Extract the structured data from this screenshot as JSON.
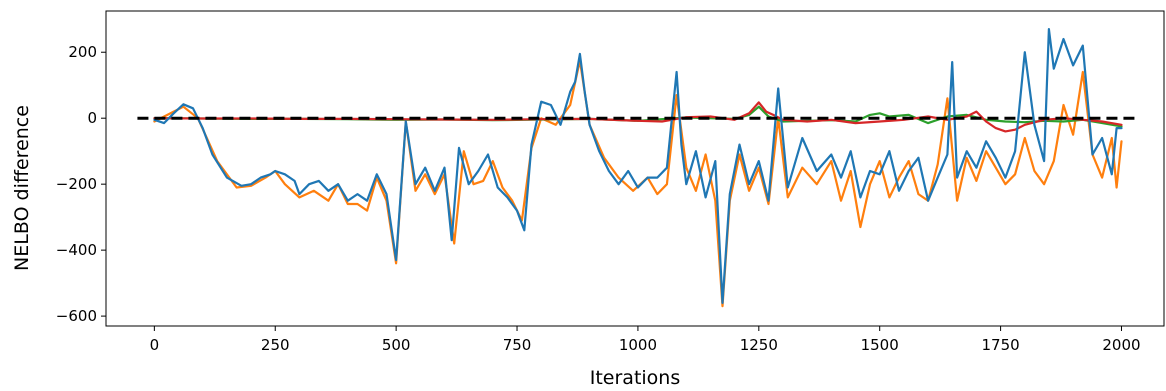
{
  "chart_data": {
    "type": "line",
    "title": "",
    "xlabel": "Iterations",
    "ylabel": "NELBO difference",
    "xlim": [
      -100,
      2090
    ],
    "ylim": [
      -630,
      325
    ],
    "xticks": [
      0,
      250,
      500,
      750,
      1000,
      1250,
      1500,
      1750,
      2000
    ],
    "yticks": [
      200,
      0,
      -200,
      -400,
      -600
    ],
    "xtick_labels": [
      "0",
      "250",
      "500",
      "750",
      "1000",
      "1250",
      "1500",
      "1750",
      "2000"
    ],
    "ytick_labels": [
      "200",
      "0",
      "−200",
      "−400",
      "−600"
    ],
    "grid": false,
    "reference_line": {
      "y": 0,
      "color": "#000000",
      "style": "dashed"
    },
    "series": [
      {
        "color": "#ff7f0e",
        "x": [
          0,
          40,
          60,
          90,
          130,
          170,
          200,
          230,
          250,
          270,
          300,
          330,
          360,
          380,
          400,
          420,
          440,
          460,
          480,
          500,
          520,
          540,
          560,
          580,
          600,
          620,
          640,
          660,
          680,
          700,
          720,
          740,
          760,
          780,
          800,
          830,
          860,
          880,
          900,
          930,
          960,
          990,
          1020,
          1040,
          1060,
          1080,
          1100,
          1120,
          1140,
          1160,
          1175,
          1190,
          1210,
          1230,
          1250,
          1270,
          1290,
          1310,
          1340,
          1370,
          1400,
          1420,
          1440,
          1460,
          1480,
          1500,
          1520,
          1540,
          1560,
          1580,
          1600,
          1620,
          1640,
          1660,
          1680,
          1700,
          1720,
          1740,
          1760,
          1780,
          1800,
          1820,
          1840,
          1860,
          1880,
          1900,
          1920,
          1940,
          1960,
          1980,
          1990,
          2000
        ],
        "y": [
          -10,
          20,
          35,
          0,
          -130,
          -210,
          -205,
          -180,
          -160,
          -200,
          -240,
          -220,
          -250,
          -200,
          -260,
          -260,
          -280,
          -180,
          -250,
          -440,
          -10,
          -220,
          -170,
          -230,
          -170,
          -380,
          -100,
          -200,
          -190,
          -130,
          -210,
          -250,
          -310,
          -90,
          0,
          -20,
          40,
          175,
          -20,
          -120,
          -180,
          -220,
          -180,
          -230,
          -200,
          70,
          -150,
          -220,
          -110,
          -250,
          -570,
          -250,
          -110,
          -220,
          -150,
          -260,
          0,
          -240,
          -150,
          -200,
          -130,
          -250,
          -160,
          -330,
          -200,
          -130,
          -240,
          -180,
          -130,
          -230,
          -250,
          -140,
          60,
          -250,
          -120,
          -190,
          -100,
          -150,
          -200,
          -170,
          -60,
          -160,
          -200,
          -130,
          40,
          -50,
          140,
          -110,
          -180,
          -60,
          -210,
          -70
        ]
      },
      {
        "color": "#2ca02c",
        "x": [
          0,
          100,
          200,
          300,
          400,
          500,
          600,
          700,
          800,
          900,
          1000,
          1100,
          1200,
          1230,
          1250,
          1270,
          1300,
          1350,
          1400,
          1450,
          1480,
          1500,
          1520,
          1560,
          1600,
          1640,
          1680,
          1720,
          1760,
          1800,
          1840,
          1880,
          1920,
          1960,
          2000
        ],
        "y": [
          0,
          -1,
          -2,
          -2,
          -3,
          -5,
          -4,
          -6,
          -4,
          -2,
          -8,
          2,
          -2,
          10,
          35,
          5,
          -10,
          -8,
          -6,
          -10,
          10,
          15,
          5,
          10,
          -15,
          5,
          10,
          -5,
          -10,
          -12,
          -8,
          -10,
          -5,
          -15,
          -25
        ]
      },
      {
        "color": "#d62728",
        "x": [
          0,
          100,
          200,
          300,
          400,
          500,
          600,
          700,
          800,
          900,
          1000,
          1050,
          1100,
          1150,
          1200,
          1230,
          1250,
          1265,
          1280,
          1300,
          1350,
          1400,
          1450,
          1500,
          1550,
          1600,
          1640,
          1680,
          1700,
          1720,
          1740,
          1760,
          1780,
          1800,
          1840,
          1880,
          1920,
          1960,
          2000
        ],
        "y": [
          0,
          -1,
          -1,
          -2,
          -2,
          -3,
          -4,
          -5,
          -3,
          -2,
          -8,
          -10,
          3,
          5,
          -5,
          15,
          48,
          20,
          10,
          -5,
          -10,
          -5,
          -15,
          -10,
          -5,
          5,
          -5,
          5,
          20,
          -10,
          -30,
          -40,
          -35,
          -20,
          -5,
          0,
          -5,
          -10,
          -20
        ]
      },
      {
        "color": "#1f77b4",
        "x": [
          0,
          20,
          40,
          60,
          80,
          100,
          120,
          150,
          180,
          200,
          220,
          240,
          250,
          270,
          290,
          300,
          320,
          340,
          360,
          380,
          400,
          420,
          440,
          460,
          480,
          500,
          520,
          540,
          560,
          580,
          600,
          615,
          630,
          650,
          670,
          690,
          710,
          730,
          750,
          765,
          780,
          800,
          820,
          840,
          860,
          870,
          880,
          890,
          900,
          920,
          940,
          960,
          980,
          1000,
          1020,
          1040,
          1060,
          1080,
          1090,
          1100,
          1120,
          1140,
          1160,
          1175,
          1190,
          1210,
          1230,
          1250,
          1270,
          1290,
          1310,
          1340,
          1370,
          1400,
          1420,
          1440,
          1460,
          1480,
          1500,
          1520,
          1540,
          1560,
          1580,
          1600,
          1620,
          1640,
          1650,
          1660,
          1680,
          1700,
          1720,
          1740,
          1760,
          1780,
          1800,
          1820,
          1840,
          1850,
          1860,
          1880,
          1900,
          1920,
          1940,
          1960,
          1980,
          1990,
          2000
        ],
        "y": [
          -5,
          -15,
          15,
          42,
          30,
          -30,
          -110,
          -180,
          -205,
          -200,
          -180,
          -170,
          -160,
          -170,
          -190,
          -230,
          -200,
          -190,
          -220,
          -200,
          -250,
          -230,
          -250,
          -170,
          -230,
          -430,
          -10,
          -200,
          -150,
          -220,
          -150,
          -370,
          -90,
          -200,
          -160,
          -110,
          -210,
          -240,
          -280,
          -340,
          -80,
          50,
          40,
          -20,
          80,
          110,
          195,
          80,
          -20,
          -100,
          -160,
          -200,
          -160,
          -210,
          -180,
          -180,
          -150,
          140,
          -80,
          -200,
          -100,
          -240,
          -130,
          -560,
          -230,
          -80,
          -200,
          -130,
          -250,
          90,
          -210,
          -60,
          -160,
          -110,
          -180,
          -100,
          -240,
          -160,
          -170,
          -100,
          -220,
          -160,
          -120,
          -250,
          -180,
          -110,
          170,
          -180,
          -100,
          -150,
          -70,
          -120,
          -180,
          -100,
          200,
          -20,
          -130,
          270,
          150,
          240,
          160,
          220,
          -110,
          -60,
          -170,
          -30,
          -30
        ]
      }
    ]
  }
}
